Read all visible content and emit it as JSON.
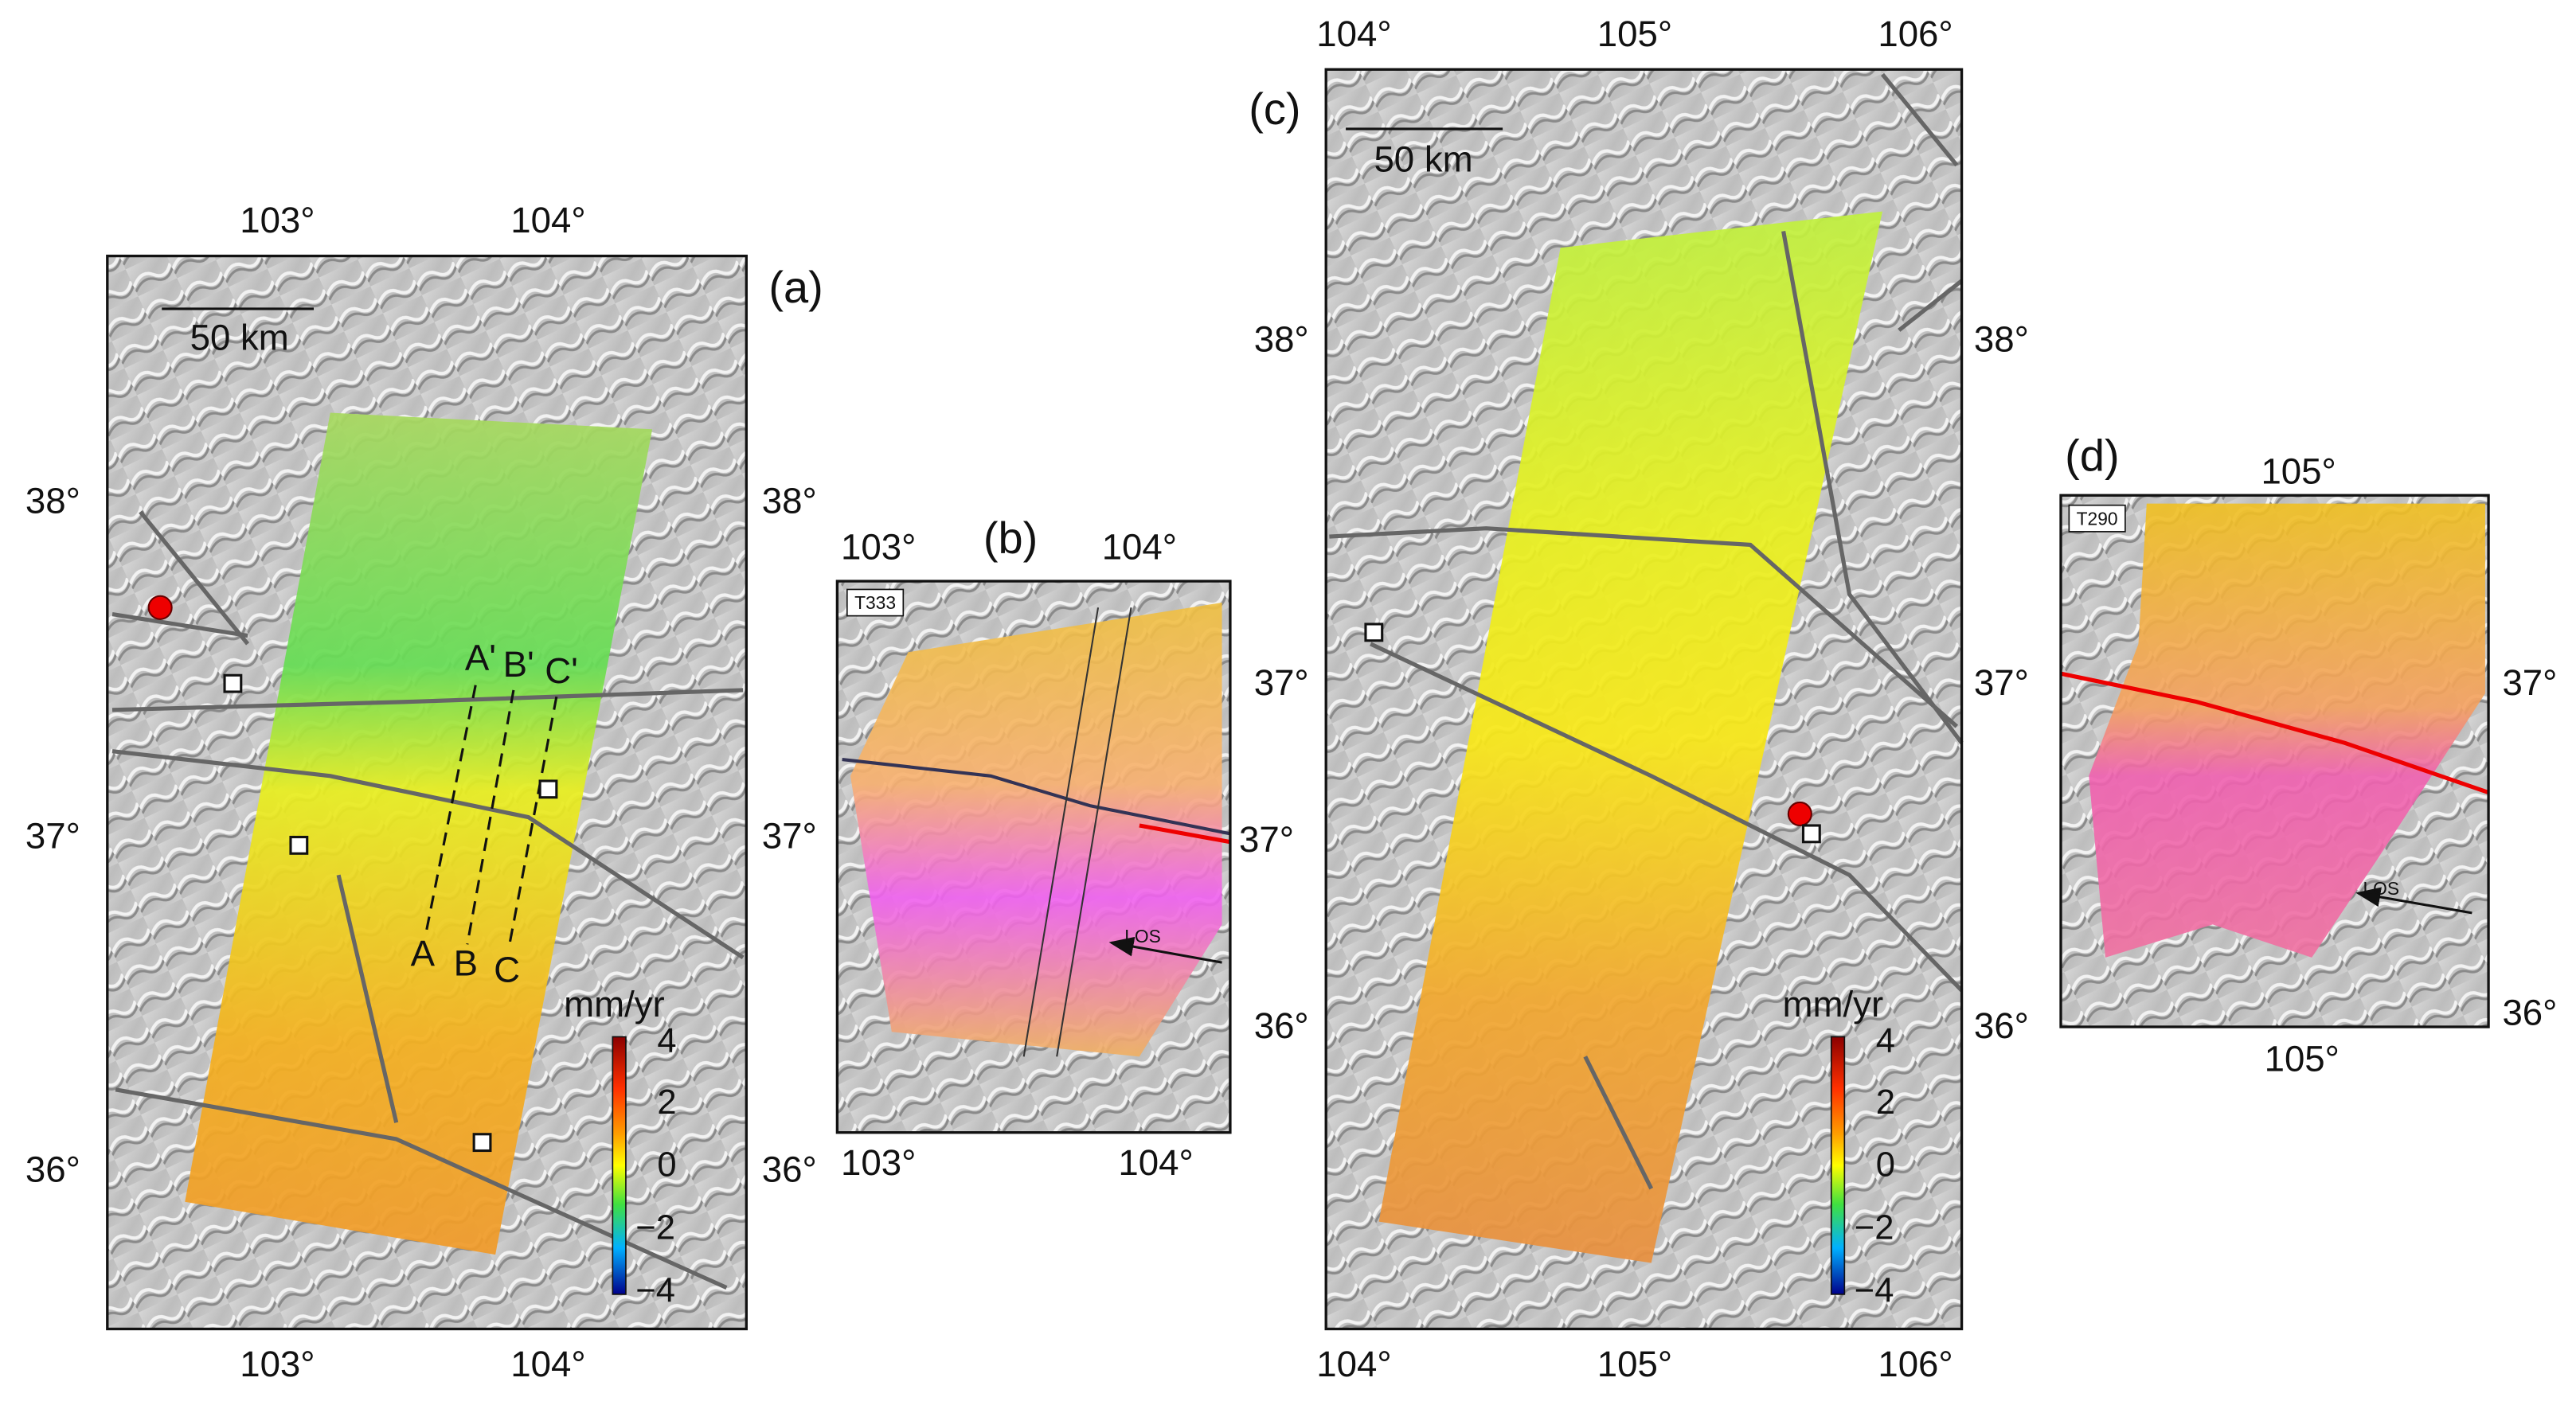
{
  "panels": [
    {
      "label": "(a)",
      "lon_top": [
        "103°",
        "104°"
      ],
      "lon_bottom": [
        "103°",
        "104°"
      ],
      "lat_left": [
        "38°",
        "37°",
        "36°"
      ],
      "lat_right": [
        "38°",
        "37°",
        "36°"
      ],
      "scale_bar": "50 km",
      "colorbar": {
        "unit": "mm/yr",
        "ticks": [
          "4",
          "2",
          "0",
          "−2",
          "−4"
        ]
      },
      "profiles": [
        "A",
        "B",
        "C",
        "A'",
        "B'",
        "C'"
      ]
    },
    {
      "label": "(b)",
      "track": "T333",
      "lon_top": [
        "103°",
        "104°"
      ],
      "lon_bottom": [
        "103°",
        "104°"
      ],
      "lat_right": [
        "37°"
      ],
      "arrow": "LOS"
    },
    {
      "label": "(c)",
      "lon_top": [
        "104°",
        "105°",
        "106°"
      ],
      "lon_bottom": [
        "104°",
        "105°",
        "106°"
      ],
      "lat_left": [
        "38°",
        "37°",
        "36°"
      ],
      "lat_right": [
        "38°",
        "37°",
        "36°"
      ],
      "scale_bar": "50 km",
      "colorbar": {
        "unit": "mm/yr",
        "ticks": [
          "4",
          "2",
          "0",
          "−2",
          "−4"
        ]
      }
    },
    {
      "label": "(d)",
      "track": "T290",
      "lon_top": [
        "105°"
      ],
      "lon_bottom": [
        "105°"
      ],
      "lat_right": [
        "37°",
        "36°"
      ],
      "arrow": "LOS"
    }
  ]
}
